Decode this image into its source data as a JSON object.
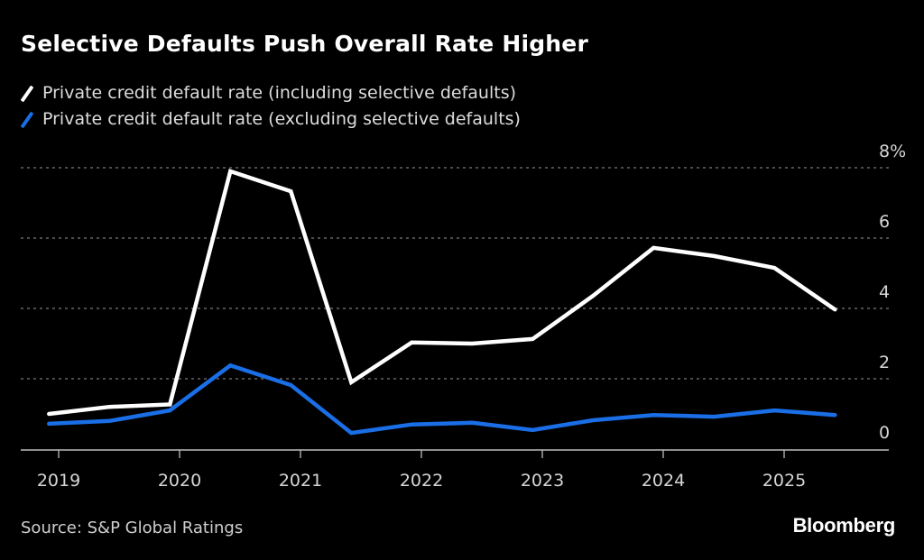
{
  "header": {
    "title": "Selective Defaults Push Overall Rate Higher"
  },
  "footer": {
    "source": "Source: S&P Global Ratings",
    "brand": "Bloomberg"
  },
  "colors": {
    "background": "#000000",
    "including": "#ffffff",
    "excluding": "#1a6ee6",
    "grid": "#7a7a7a",
    "axis": "#bdbdbd"
  },
  "chart_data": {
    "type": "line",
    "title": "Selective Defaults Push Overall Rate Higher",
    "xlabel": "",
    "ylabel": "",
    "x": [
      "2018-12",
      "2019-06",
      "2019-12",
      "2020-06",
      "2020-12",
      "2021-06",
      "2021-12",
      "2022-06",
      "2022-12",
      "2023-06",
      "2023-12",
      "2024-06",
      "2024-12",
      "2025-06"
    ],
    "x_numeric": [
      2018.92,
      2019.42,
      2019.92,
      2020.42,
      2020.92,
      2021.42,
      2021.92,
      2022.42,
      2022.92,
      2023.42,
      2023.92,
      2024.42,
      2024.92,
      2025.42
    ],
    "series": [
      {
        "name": "Private credit default rate (including selective defaults)",
        "color": "#ffffff",
        "values": [
          1.0,
          1.2,
          1.27,
          7.9,
          7.33,
          1.9,
          3.03,
          3.0,
          3.13,
          4.36,
          5.72,
          5.49,
          5.15,
          3.97
        ]
      },
      {
        "name": "Private credit default rate (excluding selective defaults)",
        "color": "#1a6ee6",
        "values": [
          0.72,
          0.8,
          1.1,
          2.38,
          1.82,
          0.46,
          0.7,
          0.75,
          0.54,
          0.82,
          0.97,
          0.92,
          1.1,
          0.97
        ]
      }
    ],
    "xlim": [
      2018.8,
      2026.0
    ],
    "ylim": [
      0,
      8
    ],
    "x_ticks": [
      2019,
      2020,
      2021,
      2022,
      2023,
      2024,
      2025
    ],
    "x_tick_labels": [
      "2019",
      "2020",
      "2021",
      "2022",
      "2023",
      "2024",
      "2025"
    ],
    "y_ticks": [
      0,
      2,
      4,
      6,
      8
    ],
    "y_tick_labels": [
      "0",
      "2",
      "4",
      "6",
      "8%"
    ],
    "grid": true,
    "legend": "top-left",
    "y_axis_side": "right"
  }
}
